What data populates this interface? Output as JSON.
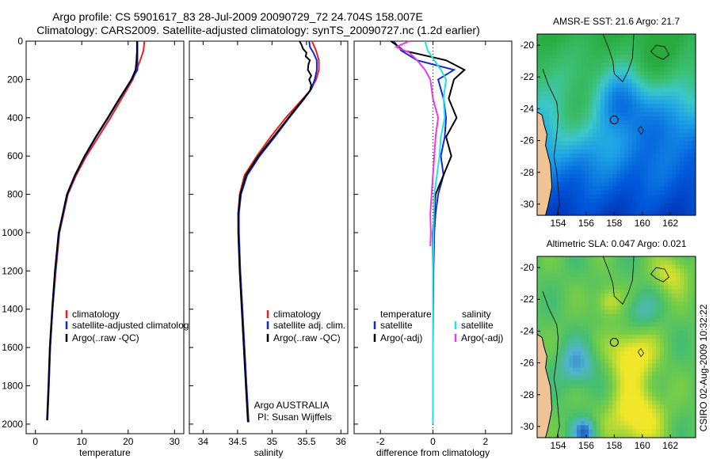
{
  "header": {
    "title_line1": "Argo profile: CS 5901617_83 28-Jul-2009 20090729_72 24.704S 158.007E",
    "title_line2": "Climatology: CARS2009. Satellite-adjusted climatology: synTS_20090727.nc (1.2d earlier)"
  },
  "side_label": "CSIRO 02-Aug-2009 10:32:22",
  "colors": {
    "red": "#e8221e",
    "blue": "#1428d2",
    "black": "#000000",
    "cyan": "#22e0ee",
    "magenta": "#e838e8",
    "land": "#efc396"
  },
  "chart_data": [
    {
      "id": "temperature",
      "type": "line",
      "xlabel": "temperature",
      "xlim": [
        -2,
        32
      ],
      "ylim": [
        0,
        2050
      ],
      "xticks": [
        0,
        10,
        20,
        30
      ],
      "yticks": [
        0,
        200,
        400,
        600,
        800,
        1000,
        1200,
        1400,
        1600,
        1800,
        2000
      ],
      "legend": [
        "climatology",
        "satellite-adjusted climatolog",
        "Argo(..raw -QC)"
      ],
      "series": [
        {
          "name": "climatology",
          "color": "red",
          "depth": [
            0,
            50,
            100,
            200,
            300,
            400,
            500,
            600,
            700,
            800,
            1000,
            1200,
            1400,
            1600,
            1800,
            1980
          ],
          "values": [
            23.5,
            23.3,
            22.6,
            21.0,
            18.6,
            16.2,
            13.6,
            11.0,
            8.8,
            7.0,
            5.2,
            4.4,
            3.7,
            3.2,
            2.9,
            2.6
          ]
        },
        {
          "name": "satellite-adjusted climatolog",
          "color": "blue",
          "depth": [
            0,
            50,
            100,
            150,
            200,
            300,
            400,
            500,
            600,
            700,
            800,
            1000,
            1200,
            1400,
            1600,
            1800,
            1980
          ],
          "values": [
            22.0,
            22.0,
            22.0,
            22.0,
            20.8,
            18.2,
            15.7,
            13.1,
            10.7,
            8.6,
            6.9,
            5.1,
            4.3,
            3.7,
            3.2,
            2.9,
            2.6
          ]
        },
        {
          "name": "Argo(..raw -QC)",
          "color": "black",
          "depth": [
            0,
            50,
            100,
            150,
            200,
            300,
            400,
            500,
            600,
            700,
            800,
            1000,
            1200,
            1400,
            1600,
            1800,
            1980
          ],
          "values": [
            21.9,
            21.9,
            21.8,
            21.6,
            20.7,
            18.1,
            15.6,
            13.0,
            10.6,
            8.5,
            6.8,
            5.0,
            4.2,
            3.6,
            3.1,
            2.8,
            2.5
          ]
        }
      ]
    },
    {
      "id": "salinity",
      "type": "line",
      "xlabel": "salinity",
      "xlim": [
        33.8,
        36.1
      ],
      "ylim": [
        0,
        2050
      ],
      "xticks": [
        34,
        34.5,
        35,
        35.5,
        36
      ],
      "yticks": [
        0,
        200,
        400,
        600,
        800,
        1000,
        1200,
        1400,
        1600,
        1800,
        2000
      ],
      "legend": [
        "climatology",
        "satellite adj. clim.",
        "Argo(..raw -QC)"
      ],
      "annotation": [
        "Argo AUSTRALIA",
        "PI: Susan Wijffels"
      ],
      "series": [
        {
          "name": "climatology",
          "color": "red",
          "depth": [
            0,
            50,
            100,
            150,
            200,
            250,
            300,
            400,
            500,
            600,
            700,
            800,
            900,
            1000,
            1200,
            1400,
            1600,
            1800,
            1990
          ],
          "values": [
            35.58,
            35.64,
            35.68,
            35.68,
            35.64,
            35.57,
            35.45,
            35.2,
            34.98,
            34.78,
            34.6,
            34.53,
            34.51,
            34.52,
            34.54,
            34.57,
            34.6,
            34.63,
            34.66
          ]
        },
        {
          "name": "satellite adj. clim.",
          "color": "blue",
          "depth": [
            0,
            30,
            60,
            100,
            150,
            200,
            250,
            300,
            400,
            500,
            600,
            700,
            800,
            900,
            1000,
            1200,
            1400,
            1600,
            1800,
            1990
          ],
          "values": [
            35.54,
            35.55,
            35.6,
            35.65,
            35.65,
            35.62,
            35.57,
            35.47,
            35.25,
            35.04,
            34.82,
            34.64,
            34.55,
            34.52,
            34.52,
            34.54,
            34.57,
            34.6,
            34.63,
            34.66
          ]
        },
        {
          "name": "Argo(..raw -QC)",
          "color": "black",
          "depth": [
            0,
            20,
            40,
            60,
            80,
            100,
            120,
            150,
            180,
            200,
            230,
            260,
            300,
            400,
            500,
            600,
            700,
            800,
            900,
            1000,
            1200,
            1400,
            1600,
            1800,
            1990
          ],
          "values": [
            35.4,
            35.43,
            35.45,
            35.5,
            35.49,
            35.55,
            35.53,
            35.52,
            35.57,
            35.54,
            35.57,
            35.55,
            35.46,
            35.24,
            35.02,
            34.8,
            34.62,
            34.54,
            34.51,
            34.51,
            34.53,
            34.56,
            34.59,
            34.62,
            34.65
          ]
        }
      ]
    },
    {
      "id": "difference",
      "type": "line",
      "xlabel": "difference from climatology",
      "xlim": [
        -3,
        3
      ],
      "ylim": [
        0,
        2050
      ],
      "xticks": [
        -2,
        0,
        2
      ],
      "yticks": [
        0,
        200,
        400,
        600,
        800,
        1000,
        1200,
        1400,
        1600,
        1800,
        2000
      ],
      "legend_headers": [
        "temperature",
        "salinity"
      ],
      "legend": [
        "satellite",
        "Argo(-adj)",
        "satellite",
        "Argo(-adj)"
      ],
      "series": [
        {
          "name": "satellite",
          "color": "blue",
          "depth": [
            0,
            50,
            100,
            150,
            200,
            300,
            400,
            500,
            600,
            700,
            800,
            900,
            1000,
            1200,
            1600,
            2000
          ],
          "values": [
            -1.5,
            -1.2,
            -0.6,
            0.8,
            0.2,
            0.4,
            0.5,
            0.45,
            0.3,
            0.4,
            0.2,
            0.1,
            0.05,
            0.02,
            0.0,
            0.0
          ]
        },
        {
          "name": "Argo(-adj)",
          "color": "black",
          "depth": [
            0,
            50,
            100,
            150,
            200,
            300,
            400,
            500,
            600,
            700,
            800,
            900,
            1000,
            1200,
            1600,
            2000
          ],
          "values": [
            -1.6,
            -1.1,
            0.5,
            1.2,
            0.8,
            0.6,
            0.9,
            0.5,
            0.7,
            0.4,
            0.1,
            0.05,
            0.0,
            0.0,
            0.0,
            0.0
          ]
        },
        {
          "name": "satellite",
          "color": "cyan",
          "depth": [
            0,
            50,
            100,
            150,
            200,
            300,
            400,
            500,
            600,
            700,
            800,
            1000,
            1200,
            1600,
            2000
          ],
          "values": [
            -0.3,
            -0.2,
            0.05,
            0.3,
            0.5,
            0.4,
            0.45,
            0.3,
            0.25,
            0.15,
            0.05,
            0.02,
            0.0,
            0.0,
            0.0
          ]
        },
        {
          "name": "Argo(-adj)",
          "color": "magenta",
          "depth": [
            0,
            30,
            60,
            100,
            150,
            200,
            300,
            400,
            500,
            600,
            700,
            800,
            900,
            1000,
            1070
          ],
          "values": [
            -0.9,
            -1.4,
            -0.9,
            -0.6,
            -0.3,
            -0.1,
            0.0,
            0.2,
            0.1,
            0.05,
            0.0,
            -0.05,
            -0.1,
            -0.08,
            -0.1
          ]
        }
      ]
    },
    {
      "id": "sst_map",
      "type": "heatmap",
      "title": "AMSR-E SST: 21.6  Argo: 21.7",
      "xticks": [
        154,
        156,
        158,
        160,
        162
      ],
      "yticks": [
        -20,
        -22,
        -24,
        -26,
        -28,
        -30
      ],
      "xlim": [
        152.5,
        163.8
      ],
      "ylim": [
        -30.7,
        -19.3
      ],
      "marker": {
        "lon": 158.0,
        "lat": -24.7
      }
    },
    {
      "id": "sla_map",
      "type": "heatmap",
      "title": "Altimetric SLA: 0.047  Argo: 0.021",
      "xticks": [
        154,
        156,
        158,
        160,
        162
      ],
      "yticks": [
        -20,
        -22,
        -24,
        -26,
        -28,
        -30
      ],
      "xlim": [
        152.5,
        163.8
      ],
      "ylim": [
        -30.7,
        -19.3
      ],
      "marker": {
        "lon": 158.0,
        "lat": -24.7
      }
    }
  ]
}
